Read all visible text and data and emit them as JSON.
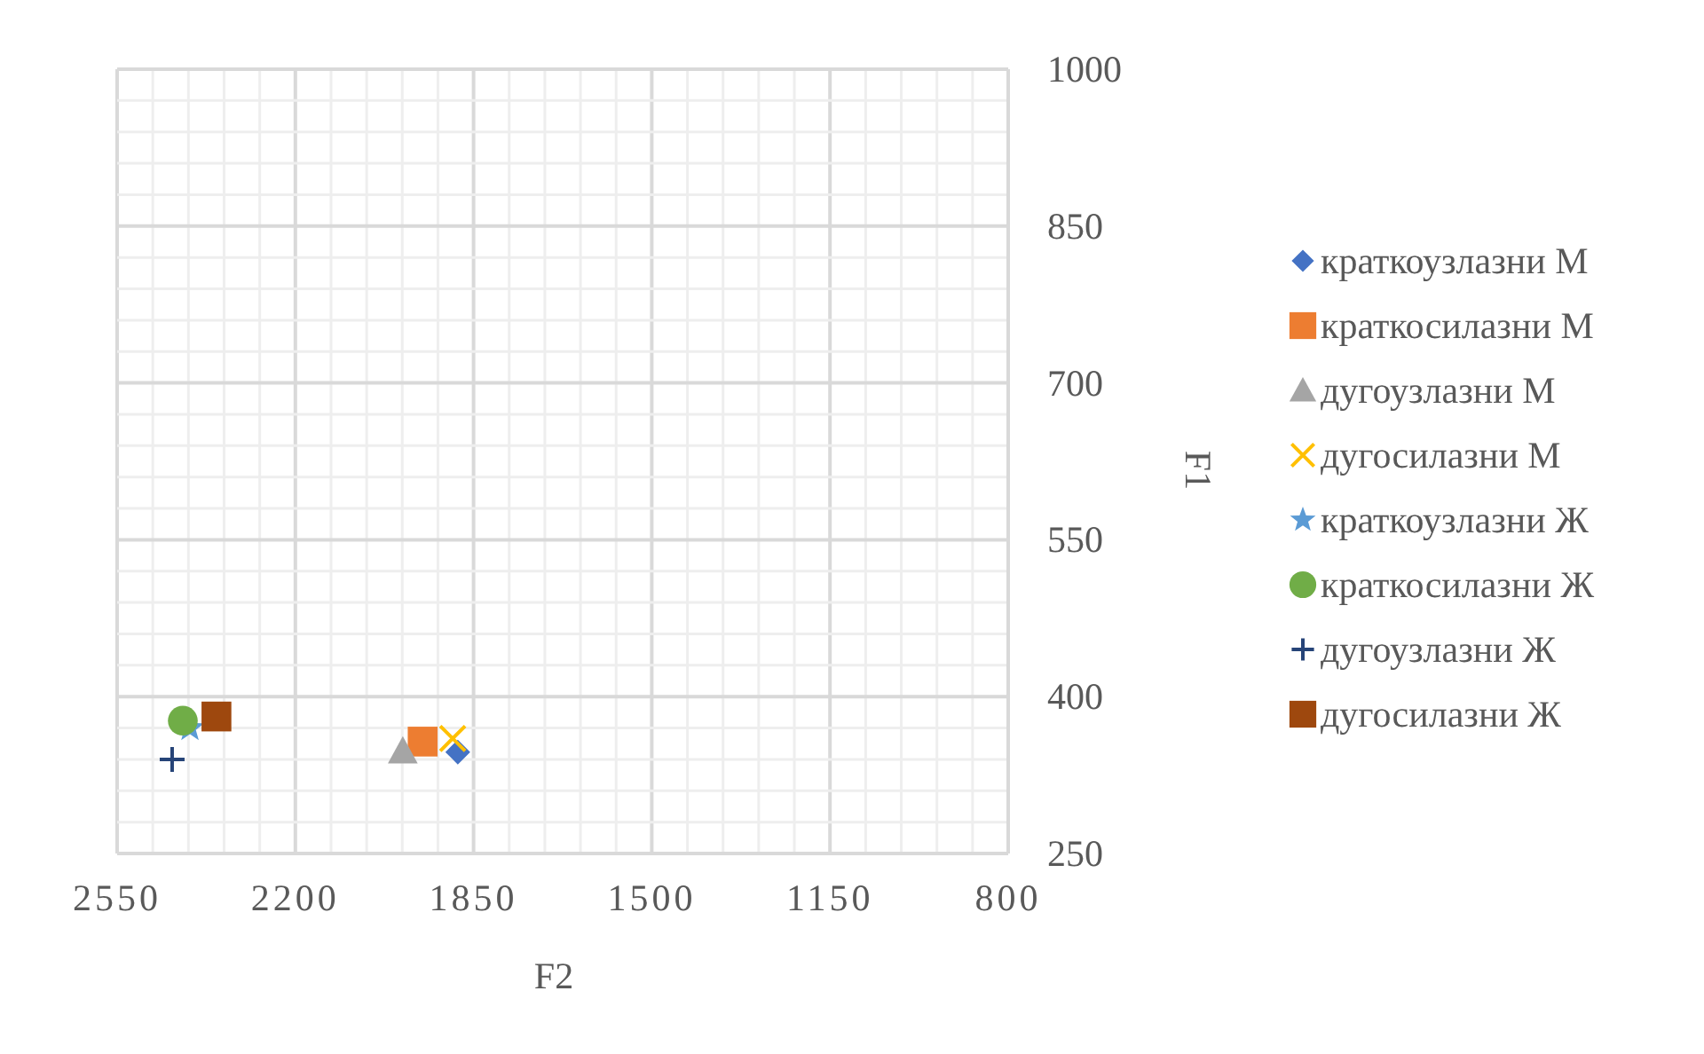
{
  "chart_data": {
    "type": "scatter",
    "xlabel": "F2",
    "ylabel": "F1",
    "xlim": [
      2550,
      800
    ],
    "ylim": [
      250,
      1000
    ],
    "xticks": [
      2550,
      {
        "value": 2480,
        "label": null
      },
      {
        "value": 2410,
        "label": null
      },
      {
        "value": 2340,
        "label": null
      },
      {
        "value": 2270,
        "label": null
      },
      2200,
      {
        "value": 2130,
        "label": null
      },
      {
        "value": 2060,
        "label": null
      },
      {
        "value": 1990,
        "label": null
      },
      {
        "value": 1920,
        "label": null
      },
      1850,
      {
        "value": 1780,
        "label": null
      },
      {
        "value": 1710,
        "label": null
      },
      {
        "value": 1640,
        "label": null
      },
      {
        "value": 1570,
        "label": null
      },
      1500,
      {
        "value": 1430,
        "label": null
      },
      {
        "value": 1360,
        "label": null
      },
      {
        "value": 1290,
        "label": null
      },
      {
        "value": 1220,
        "label": null
      },
      1150,
      {
        "value": 1080,
        "label": null
      },
      {
        "value": 1010,
        "label": null
      },
      {
        "value": 940,
        "label": null
      },
      {
        "value": 870,
        "label": null
      },
      800
    ],
    "yticks": [
      250,
      {
        "value": 280,
        "label": null
      },
      {
        "value": 310,
        "label": null
      },
      {
        "value": 340,
        "label": null
      },
      {
        "value": 370,
        "label": null
      },
      400,
      {
        "value": 430,
        "label": null
      },
      {
        "value": 460,
        "label": null
      },
      {
        "value": 490,
        "label": null
      },
      {
        "value": 520,
        "label": null
      },
      550,
      {
        "value": 580,
        "label": null
      },
      {
        "value": 610,
        "label": null
      },
      {
        "value": 640,
        "label": null
      },
      {
        "value": 670,
        "label": null
      },
      700,
      {
        "value": 730,
        "label": null
      },
      {
        "value": 760,
        "label": null
      },
      {
        "value": 790,
        "label": null
      },
      {
        "value": 820,
        "label": null
      },
      850,
      {
        "value": 880,
        "label": null
      },
      {
        "value": 910,
        "label": null
      },
      {
        "value": 940,
        "label": null
      },
      {
        "value": 970,
        "label": null
      },
      1000
    ],
    "grid": true,
    "legend": "right",
    "series": [
      {
        "name": "краткоузлазни М",
        "color": "#4472c4",
        "marker": "diamond",
        "x": [
          1881
        ],
        "values": [
          347
        ]
      },
      {
        "name": "краткосилазни М",
        "color": "#ed7d31",
        "marker": "square",
        "x": [
          1950
        ],
        "values": [
          357
        ]
      },
      {
        "name": "дугоузлазни М",
        "color": "#a5a5a5",
        "marker": "triangle",
        "x": [
          1989
        ],
        "values": [
          348
        ]
      },
      {
        "name": "дугосилазни М",
        "color": "#ffc000",
        "marker": "cross",
        "x": [
          1891
        ],
        "values": [
          360
        ]
      },
      {
        "name": "краткоузлазни Ж",
        "color": "#5b9bd5",
        "marker": "star",
        "x": [
          2407
        ],
        "values": [
          370
        ]
      },
      {
        "name": "краткосилазни Ж",
        "color": "#70ad47",
        "marker": "circle",
        "x": [
          2421
        ],
        "values": [
          377
        ]
      },
      {
        "name": "дугоузлазни Ж",
        "color": "#264478",
        "marker": "plus",
        "x": [
          2442
        ],
        "values": [
          340
        ]
      },
      {
        "name": "дугосилазни Ж",
        "color": "#9e480e",
        "marker": "square",
        "x": [
          2355
        ],
        "values": [
          381
        ]
      }
    ]
  }
}
